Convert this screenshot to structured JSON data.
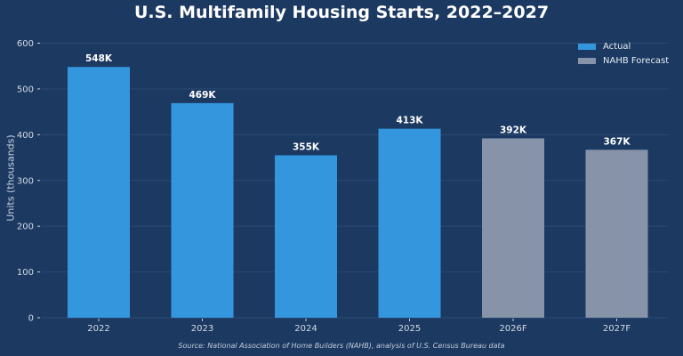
{
  "chart_data": {
    "type": "bar",
    "title": "U.S. Multifamily Housing Starts, 2022–2027",
    "ylabel": "Units (thousands)",
    "xlabel": "",
    "ylim": [
      0,
      600
    ],
    "yticks": [
      0,
      100,
      200,
      300,
      400,
      500,
      600
    ],
    "categories": [
      "2022",
      "2023",
      "2024",
      "2025",
      "2026F",
      "2027F"
    ],
    "values": [
      548,
      469,
      355,
      413,
      392,
      367
    ],
    "data_labels": [
      "548K",
      "469K",
      "355K",
      "413K",
      "392K",
      "367K"
    ],
    "bar_series": [
      "Actual",
      "Actual",
      "Actual",
      "Actual",
      "NAHB Forecast",
      "NAHB Forecast"
    ],
    "series_colors": {
      "Actual": "#3497de",
      "NAHB Forecast": "#8793a8"
    },
    "legend": {
      "position": "top-right",
      "entries": [
        {
          "label": "Actual",
          "color": "#3497de"
        },
        {
          "label": "NAHB Forecast",
          "color": "#8793a8"
        }
      ]
    },
    "grid": true,
    "source": "Source: National Association of Home Builders (NAHB), analysis of U.S. Census Bureau data"
  }
}
